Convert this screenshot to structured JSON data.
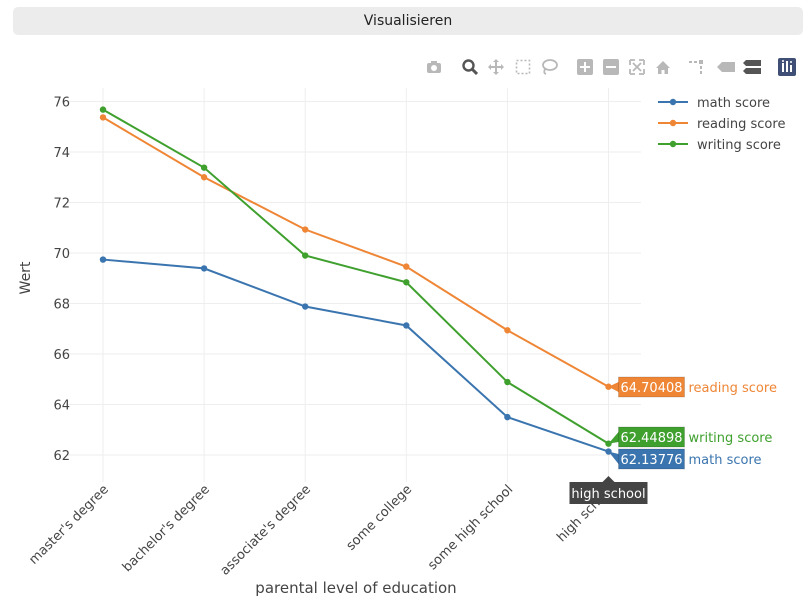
{
  "app": {
    "visualize_label": "Visualisieren"
  },
  "toolbar": {
    "icons": [
      "camera-icon",
      "zoom-icon",
      "pan-icon",
      "box-select-icon",
      "lasso-select-icon",
      "zoom-in-icon",
      "zoom-out-icon",
      "autoscale-icon",
      "reset-axes-icon",
      "spike-lines-icon",
      "hover-closest-icon",
      "hover-compare-icon",
      "plotly-logo-icon"
    ]
  },
  "colors": {
    "math": "#3b75af",
    "reading": "#ef8636",
    "writing": "#3fa02e",
    "grid": "#eeeeee",
    "text": "#444444"
  },
  "chart_data": {
    "type": "line",
    "title": "",
    "xlabel": "parental level of education",
    "ylabel": "Wert",
    "categories": [
      "master's degree",
      "bachelor's degree",
      "associate's degree",
      "some college",
      "some high school",
      "high school"
    ],
    "ylim": [
      61,
      76.6
    ],
    "yticks": [
      62,
      64,
      66,
      68,
      70,
      72,
      74,
      76
    ],
    "series": [
      {
        "name": "math score",
        "color": "#3b75af",
        "values": [
          69.74,
          69.39,
          67.88,
          67.13,
          63.5,
          62.13776
        ]
      },
      {
        "name": "reading score",
        "color": "#ef8636",
        "values": [
          75.37,
          73.0,
          70.93,
          69.46,
          66.94,
          64.70408
        ]
      },
      {
        "name": "writing score",
        "color": "#3fa02e",
        "values": [
          75.68,
          73.38,
          69.9,
          68.84,
          64.89,
          62.44898
        ]
      }
    ],
    "legend_position": "top-right",
    "hover": {
      "category": "high school",
      "labels": [
        {
          "series": "reading score",
          "value_text": "64.70408"
        },
        {
          "series": "writing score",
          "value_text": "62.44898"
        },
        {
          "series": "math score",
          "value_text": "62.13776"
        }
      ]
    }
  }
}
